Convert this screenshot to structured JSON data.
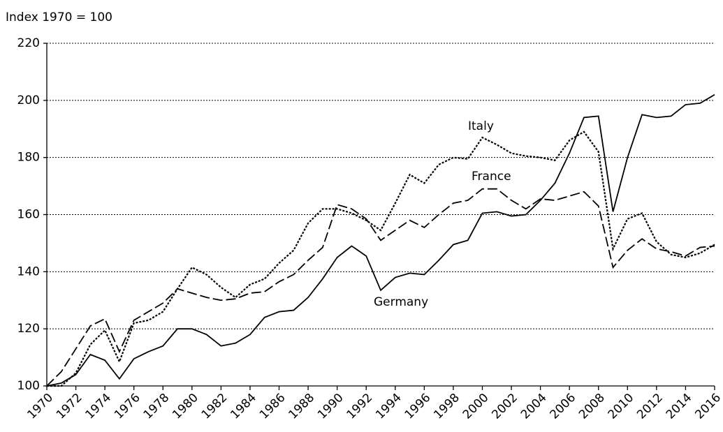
{
  "chart_data": {
    "type": "line",
    "y_label": "Index 1970 = 100",
    "x": [
      1970,
      1971,
      1972,
      1973,
      1974,
      1975,
      1976,
      1977,
      1978,
      1979,
      1980,
      1981,
      1982,
      1983,
      1984,
      1985,
      1986,
      1987,
      1988,
      1989,
      1990,
      1991,
      1992,
      1993,
      1994,
      1995,
      1996,
      1997,
      1998,
      1999,
      2000,
      2001,
      2002,
      2003,
      2004,
      2005,
      2006,
      2007,
      2008,
      2009,
      2010,
      2011,
      2012,
      2013,
      2014,
      2015,
      2016
    ],
    "xlim": [
      1970,
      2016
    ],
    "xticks": [
      1970,
      1972,
      1974,
      1976,
      1978,
      1980,
      1982,
      1984,
      1986,
      1988,
      1990,
      1992,
      1994,
      1996,
      1998,
      2000,
      2002,
      2004,
      2006,
      2008,
      2010,
      2012,
      2014,
      2016
    ],
    "ylim": [
      100,
      220
    ],
    "yticks": [
      100,
      120,
      140,
      160,
      180,
      200,
      220
    ],
    "grid": true,
    "series": [
      {
        "name": "Germany",
        "color": "#000000",
        "line_style": "solid",
        "values": [
          100,
          101,
          104,
          111,
          109,
          102.5,
          109.5,
          112,
          114,
          120,
          120,
          118,
          114,
          115,
          118,
          124,
          126,
          126.5,
          131,
          137.5,
          145,
          149,
          145.5,
          133.5,
          138,
          139.5,
          139,
          144,
          149.5,
          151,
          160.5,
          161,
          159.5,
          160,
          165,
          171,
          181.5,
          194,
          194.5,
          161,
          180,
          195,
          194,
          194.5,
          198.5,
          199,
          202
        ]
      },
      {
        "name": "France",
        "color": "#000000",
        "line_style": "dashed",
        "values": [
          100,
          105,
          113,
          121,
          123.5,
          112,
          123,
          126,
          129,
          134,
          132.5,
          131,
          130,
          130.5,
          132.5,
          133,
          136.5,
          139,
          144,
          148.5,
          163.5,
          162,
          158.5,
          151,
          154.5,
          158,
          155.5,
          160,
          164,
          165,
          169,
          169,
          165,
          162,
          165.5,
          165,
          166.5,
          168,
          163,
          141.5,
          147.5,
          151.5,
          148,
          147,
          145.5,
          148.5,
          149
        ]
      },
      {
        "name": "Italy",
        "color": "#000000",
        "line_style": "dotted",
        "values": [
          100,
          100,
          104.5,
          114.5,
          119.5,
          108.5,
          122,
          123,
          126,
          134,
          141.5,
          139,
          134.5,
          131,
          135.5,
          137.5,
          143,
          147.5,
          157,
          162,
          162,
          160.5,
          158,
          154.5,
          164,
          174,
          171,
          177.5,
          180,
          179.5,
          187,
          184.5,
          181.5,
          180.5,
          180,
          179,
          186,
          189,
          182,
          148,
          158.5,
          160.5,
          150.5,
          146,
          145,
          146.5,
          149.5
        ]
      }
    ]
  }
}
